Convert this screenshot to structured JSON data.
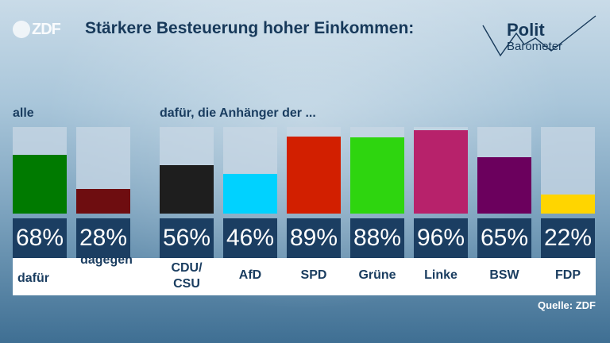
{
  "logo": {
    "text": "ZDF"
  },
  "title": "Stärkere Besteuerung hoher Einkommen:",
  "brand": {
    "line1": "Polit",
    "line2": "Barometer"
  },
  "section_all": "alle",
  "section_parties": "dafür, die Anhänger der ...",
  "source": "Quelle: ZDF",
  "chart_data": {
    "type": "bar",
    "title": "Stärkere Besteuerung hoher Einkommen:",
    "ylim": [
      0,
      100
    ],
    "groups": [
      {
        "label": "alle",
        "categories": [
          "dafür",
          "dagegen"
        ]
      },
      {
        "label": "dafür, die Anhänger der ...",
        "categories": [
          "CDU/CSU",
          "AfD",
          "SPD",
          "Grüne",
          "Linke",
          "BSW",
          "FDP"
        ]
      }
    ],
    "categories": [
      "dafür",
      "dagegen",
      "CDU/CSU",
      "AfD",
      "SPD",
      "Grüne",
      "Linke",
      "BSW",
      "FDP"
    ],
    "values": [
      68,
      28,
      56,
      46,
      89,
      88,
      96,
      65,
      22
    ],
    "value_labels": [
      "68%",
      "28%",
      "56%",
      "46%",
      "89%",
      "88%",
      "96%",
      "65%",
      "22%"
    ],
    "colors": [
      "#007a00",
      "#6e0d10",
      "#1e1e1e",
      "#00d2ff",
      "#d21f00",
      "#2ed50f",
      "#b7226b",
      "#6b005d",
      "#ffd500"
    ]
  }
}
